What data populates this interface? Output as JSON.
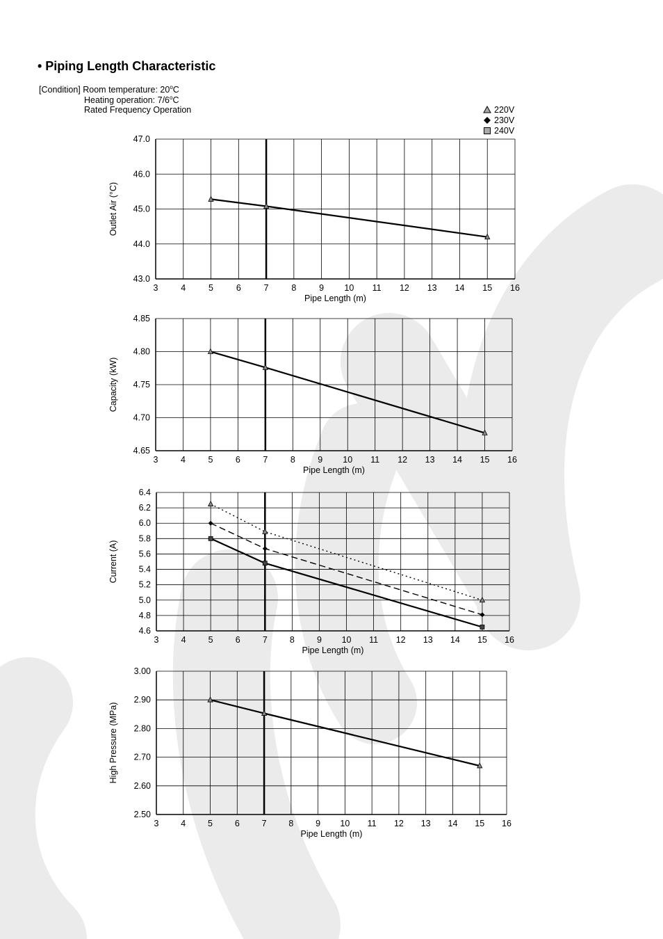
{
  "page": {
    "heading": "• Piping Length Characteristic",
    "condition_label": "[Condition]",
    "condition_lines": [
      "Room temperature: 20",
      "Heating operation: 7/6",
      "Rated Frequency Operation"
    ],
    "degree_mark": "o",
    "degree_unit": "C"
  },
  "legend": {
    "items": [
      {
        "label": "220V",
        "marker": "triangle",
        "style": "dotted"
      },
      {
        "label": "230V",
        "marker": "diamond",
        "style": "dashed"
      },
      {
        "label": "240V",
        "marker": "square",
        "style": "solid"
      }
    ]
  },
  "colors": {
    "line": "#000000",
    "grid": "#000000",
    "watermark": "#ebebeb"
  },
  "chart_data": [
    {
      "type": "line",
      "xlabel": "Pipe Length (m)",
      "ylabel": "Outlet Air (°C)",
      "xlim": [
        3,
        16
      ],
      "ylim": [
        43.0,
        47.0
      ],
      "x_ticks": [
        "3",
        "4",
        "5",
        "6",
        "7",
        "8",
        "9",
        "10",
        "11",
        "12",
        "13",
        "14",
        "15",
        "16"
      ],
      "y_ticks": [
        "43.0",
        "44.0",
        "45.0",
        "46.0",
        "47.0"
      ],
      "reference_x": 7,
      "series": [
        {
          "marker": "triangle",
          "style": "solid",
          "x": [
            5,
            7,
            15
          ],
          "y": [
            45.28,
            45.08,
            44.2
          ]
        }
      ]
    },
    {
      "type": "line",
      "xlabel": "Pipe Length (m)",
      "ylabel": "Capacity (kW)",
      "xlim": [
        3,
        16
      ],
      "ylim": [
        4.65,
        4.85
      ],
      "x_ticks": [
        "3",
        "4",
        "5",
        "6",
        "7",
        "8",
        "9",
        "10",
        "11",
        "12",
        "13",
        "14",
        "15",
        "16"
      ],
      "y_ticks": [
        "4.65",
        "4.70",
        "4.75",
        "4.80",
        "4.85"
      ],
      "reference_x": 7,
      "series": [
        {
          "marker": "triangle",
          "style": "solid",
          "x": [
            5,
            7,
            15
          ],
          "y": [
            4.8,
            4.776,
            4.677
          ]
        }
      ]
    },
    {
      "type": "line",
      "xlabel": "Pipe Length (m)",
      "ylabel": "Current (A)",
      "xlim": [
        3,
        16
      ],
      "ylim": [
        4.6,
        6.4
      ],
      "x_ticks": [
        "3",
        "4",
        "5",
        "6",
        "7",
        "8",
        "9",
        "10",
        "11",
        "12",
        "13",
        "14",
        "15",
        "16"
      ],
      "y_ticks": [
        "4.6",
        "4.8",
        "5.0",
        "5.2",
        "5.4",
        "5.6",
        "5.8",
        "6.0",
        "6.2",
        "6.4"
      ],
      "reference_x": 7,
      "series": [
        {
          "name": "220V",
          "marker": "triangle",
          "style": "dotted",
          "x": [
            5,
            7,
            15
          ],
          "y": [
            6.25,
            5.89,
            5.0
          ]
        },
        {
          "name": "230V",
          "marker": "diamond",
          "style": "dashed",
          "x": [
            5,
            7,
            15
          ],
          "y": [
            6.0,
            5.67,
            4.81
          ]
        },
        {
          "name": "240V",
          "marker": "square",
          "style": "solid",
          "x": [
            5,
            7,
            15
          ],
          "y": [
            5.8,
            5.48,
            4.65
          ]
        }
      ]
    },
    {
      "type": "line",
      "xlabel": "Pipe Length (m)",
      "ylabel": "High Pressure (MPa)",
      "xlim": [
        3,
        16
      ],
      "ylim": [
        2.5,
        3.0
      ],
      "x_ticks": [
        "3",
        "4",
        "5",
        "6",
        "7",
        "8",
        "9",
        "10",
        "11",
        "12",
        "13",
        "14",
        "15",
        "16"
      ],
      "y_ticks": [
        "2.50",
        "2.60",
        "2.70",
        "2.80",
        "2.90",
        "3.00"
      ],
      "reference_x": 7,
      "series": [
        {
          "marker": "triangle",
          "style": "solid",
          "x": [
            5,
            7,
            15
          ],
          "y": [
            2.9,
            2.853,
            2.67
          ]
        }
      ]
    }
  ]
}
